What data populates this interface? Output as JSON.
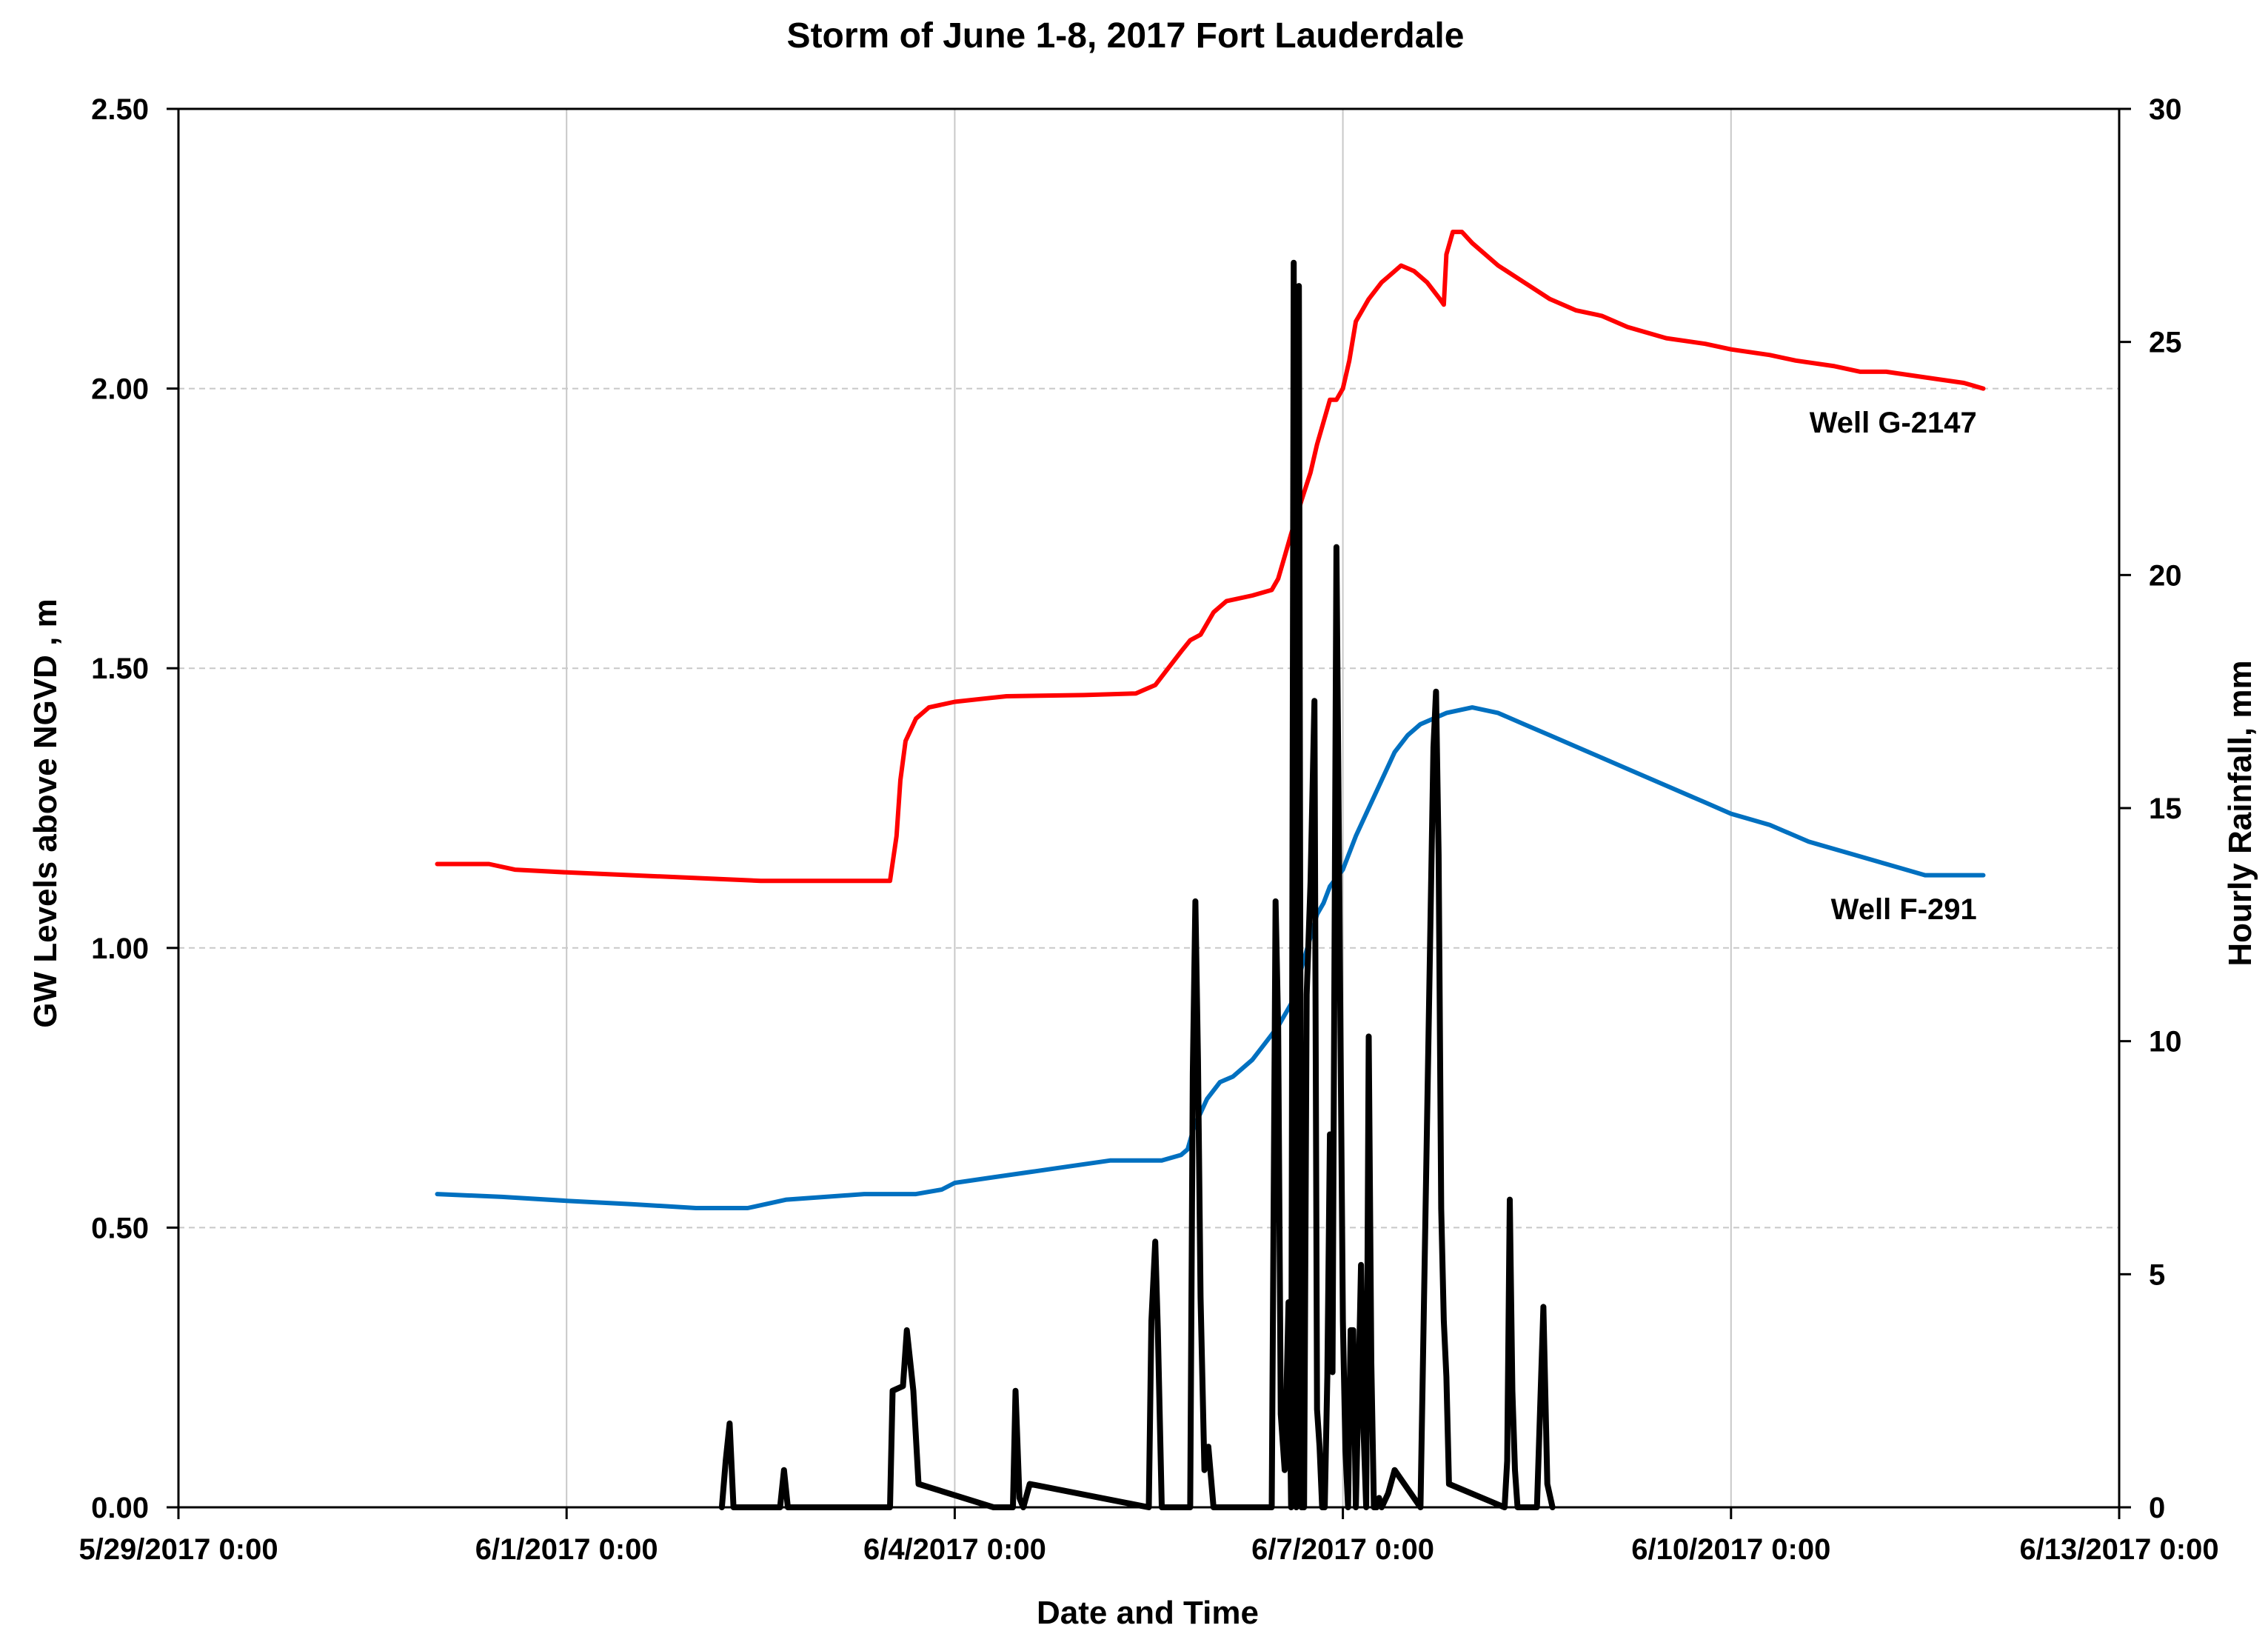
{
  "chart_data": {
    "type": "line",
    "title": "Storm of June 1-8, 2017 Fort Lauderdale",
    "xlabel": "Date and Time",
    "ylabel_left": "GW Levels above NGVD , m",
    "ylabel_right": "Hourly Rainfall, mm",
    "x_unit": "days since 5/29/2017 0:00",
    "xlim": [
      0,
      15
    ],
    "x_ticks": [
      {
        "value": 0,
        "label": "5/29/2017 0:00"
      },
      {
        "value": 3,
        "label": "6/1/2017 0:00"
      },
      {
        "value": 6,
        "label": "6/4/2017 0:00"
      },
      {
        "value": 9,
        "label": "6/7/2017 0:00"
      },
      {
        "value": 12,
        "label": "6/10/2017 0:00"
      },
      {
        "value": 15,
        "label": "6/13/2017 0:00"
      }
    ],
    "ylim_left": [
      0,
      2.5
    ],
    "y_ticks_left": [
      "0.00",
      "0.50",
      "1.00",
      "1.50",
      "2.00",
      "2.50"
    ],
    "ylim_right": [
      0,
      30
    ],
    "y_ticks_right": [
      "0",
      "5",
      "10",
      "15",
      "20",
      "25",
      "30"
    ],
    "grid": {
      "vertical": true,
      "horizontal_dashed": true
    },
    "series": [
      {
        "name": "Well G-2147",
        "axis": "left",
        "color": "#ff0000",
        "label_at": [
          13.9,
          1.94
        ],
        "x": [
          2.0,
          2.4,
          2.6,
          3.0,
          3.5,
          4.0,
          4.5,
          5.0,
          5.5,
          5.55,
          5.58,
          5.62,
          5.7,
          5.8,
          6.0,
          6.2,
          6.4,
          7.0,
          7.4,
          7.45,
          7.55,
          7.65,
          7.75,
          7.82,
          7.9,
          8.0,
          8.1,
          8.3,
          8.45,
          8.5,
          8.55,
          8.6,
          8.68,
          8.75,
          8.8,
          8.85,
          8.9,
          8.95,
          9.0,
          9.05,
          9.1,
          9.2,
          9.3,
          9.35,
          9.45,
          9.55,
          9.65,
          9.75,
          9.78,
          9.8,
          9.85,
          9.92,
          10.0,
          10.2,
          10.4,
          10.6,
          10.8,
          11.0,
          11.2,
          11.5,
          11.8,
          12.0,
          12.3,
          12.5,
          12.8,
          13.0,
          13.2,
          13.5,
          13.8,
          13.95
        ],
        "values": [
          1.15,
          1.15,
          1.14,
          1.135,
          1.13,
          1.125,
          1.12,
          1.12,
          1.12,
          1.2,
          1.3,
          1.37,
          1.41,
          1.43,
          1.44,
          1.445,
          1.45,
          1.452,
          1.455,
          1.46,
          1.47,
          1.5,
          1.53,
          1.55,
          1.56,
          1.6,
          1.62,
          1.63,
          1.64,
          1.66,
          1.7,
          1.74,
          1.8,
          1.85,
          1.9,
          1.94,
          1.98,
          1.98,
          2.0,
          2.05,
          2.12,
          2.16,
          2.19,
          2.2,
          2.22,
          2.21,
          2.19,
          2.16,
          2.15,
          2.24,
          2.28,
          2.28,
          2.26,
          2.22,
          2.19,
          2.16,
          2.14,
          2.13,
          2.11,
          2.09,
          2.08,
          2.07,
          2.06,
          2.05,
          2.04,
          2.03,
          2.03,
          2.02,
          2.01,
          2.0
        ]
      },
      {
        "name": "Well F-291",
        "axis": "left",
        "color": "#0070c0",
        "label_at": [
          13.9,
          1.07
        ],
        "x": [
          2.0,
          2.5,
          3.0,
          3.5,
          4.0,
          4.2,
          4.4,
          4.7,
          5.0,
          5.3,
          5.5,
          5.7,
          5.9,
          6.0,
          6.3,
          6.6,
          6.9,
          7.2,
          7.5,
          7.6,
          7.75,
          7.8,
          7.85,
          7.95,
          8.05,
          8.15,
          8.3,
          8.4,
          8.5,
          8.6,
          8.7,
          8.8,
          8.85,
          8.9,
          9.0,
          9.1,
          9.2,
          9.3,
          9.4,
          9.5,
          9.6,
          9.8,
          10.0,
          10.2,
          10.4,
          10.6,
          10.8,
          11.0,
          11.2,
          11.5,
          11.8,
          12.0,
          12.3,
          12.6,
          12.9,
          13.2,
          13.5,
          13.8,
          13.95
        ],
        "values": [
          0.56,
          0.555,
          0.548,
          0.542,
          0.535,
          0.535,
          0.535,
          0.55,
          0.555,
          0.56,
          0.56,
          0.56,
          0.568,
          0.58,
          0.59,
          0.6,
          0.61,
          0.62,
          0.62,
          0.62,
          0.63,
          0.64,
          0.68,
          0.73,
          0.76,
          0.77,
          0.8,
          0.83,
          0.86,
          0.9,
          0.98,
          1.06,
          1.08,
          1.11,
          1.14,
          1.2,
          1.25,
          1.3,
          1.35,
          1.38,
          1.4,
          1.42,
          1.43,
          1.42,
          1.4,
          1.38,
          1.36,
          1.34,
          1.32,
          1.29,
          1.26,
          1.24,
          1.22,
          1.19,
          1.17,
          1.15,
          1.13,
          1.13,
          1.13
        ]
      },
      {
        "name": "Hourly Rainfall",
        "axis": "right",
        "color": "#000000",
        "x": [
          4.2,
          4.23,
          4.26,
          4.29,
          4.65,
          4.68,
          4.71,
          5.5,
          5.52,
          5.6,
          5.63,
          5.68,
          5.72,
          6.3,
          6.45,
          6.47,
          6.5,
          6.53,
          6.58,
          7.5,
          7.52,
          7.55,
          7.57,
          7.6,
          7.82,
          7.84,
          7.86,
          7.88,
          7.9,
          7.93,
          7.96,
          8.0,
          8.05,
          8.45,
          8.48,
          8.5,
          8.52,
          8.55,
          8.58,
          8.6,
          8.62,
          8.64,
          8.66,
          8.68,
          8.7,
          8.72,
          8.75,
          8.78,
          8.8,
          8.82,
          8.84,
          8.86,
          8.88,
          8.9,
          8.92,
          8.95,
          9.0,
          9.02,
          9.04,
          9.06,
          9.08,
          9.1,
          9.12,
          9.14,
          9.16,
          9.18,
          9.2,
          9.22,
          9.24,
          9.26,
          9.28,
          9.3,
          9.35,
          9.4,
          9.6,
          9.7,
          9.72,
          9.74,
          9.76,
          9.78,
          9.8,
          9.82,
          10.25,
          10.27,
          10.29,
          10.31,
          10.33,
          10.35,
          10.5,
          10.55,
          10.58,
          10.62
        ],
        "values": [
          0,
          1.0,
          1.8,
          0,
          0,
          0.8,
          0,
          0,
          2.5,
          2.6,
          3.8,
          2.5,
          0.5,
          0,
          0,
          2.5,
          0.2,
          0,
          0.5,
          0,
          4.0,
          5.7,
          3.8,
          0,
          0,
          9.3,
          13.0,
          9.6,
          4.5,
          0.8,
          1.3,
          0,
          0,
          0,
          13.0,
          10.3,
          2.0,
          0.8,
          4.4,
          0,
          26.7,
          0,
          26.2,
          0,
          0,
          11.0,
          13.4,
          17.3,
          2.1,
          1.3,
          0,
          0,
          2.8,
          8.0,
          2.9,
          20.6,
          4.0,
          1.2,
          0,
          3.8,
          3.8,
          0,
          2.5,
          5.2,
          1.6,
          0,
          10.1,
          3.1,
          0,
          0,
          0.2,
          0,
          0.3,
          0.8,
          0,
          16.3,
          17.5,
          14.0,
          6.4,
          4.0,
          2.8,
          0.5,
          0,
          1.0,
          6.6,
          2.5,
          0.8,
          0,
          0,
          4.3,
          0.5,
          0
        ]
      }
    ]
  }
}
